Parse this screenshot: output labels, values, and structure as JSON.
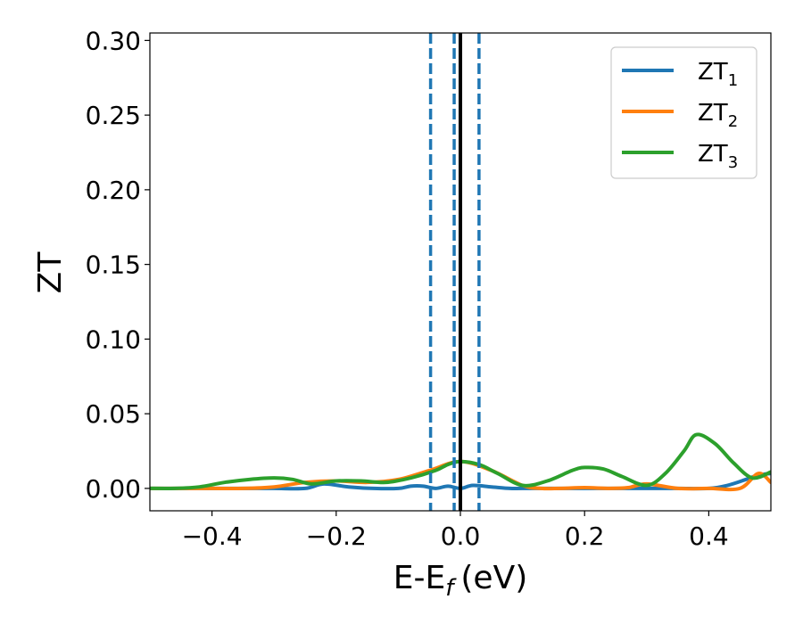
{
  "chart_data": {
    "type": "line",
    "xlabel": "E-E",
    "xlabel_sub": "f",
    "xlabel_unit": "(eV)",
    "ylabel": "ZT",
    "xlim": [
      -0.5,
      0.5
    ],
    "ylim": [
      -0.015,
      0.305
    ],
    "xticks": [
      -0.4,
      -0.2,
      0.0,
      0.2,
      0.4
    ],
    "xtick_labels": [
      "−0.4",
      "−0.2",
      "0.0",
      "0.2",
      "0.4"
    ],
    "yticks": [
      0.0,
      0.05,
      0.1,
      0.15,
      0.2,
      0.25,
      0.3
    ],
    "ytick_labels": [
      "0.00",
      "0.05",
      "0.10",
      "0.15",
      "0.20",
      "0.25",
      "0.30"
    ],
    "grid": false,
    "legend": "top-right",
    "vlines": [
      {
        "x": 0.0,
        "style": "solid",
        "color": "#000000"
      },
      {
        "x": -0.048,
        "style": "dashed",
        "color": "#1f77b4"
      },
      {
        "x": -0.01,
        "style": "dashed",
        "color": "#1f77b4"
      },
      {
        "x": 0.03,
        "style": "dashed",
        "color": "#1f77b4"
      }
    ],
    "series": [
      {
        "name": "ZT",
        "name_sub": "1",
        "color": "#1f77b4",
        "x": [
          -0.5,
          -0.45,
          -0.4,
          -0.35,
          -0.3,
          -0.25,
          -0.22,
          -0.18,
          -0.14,
          -0.1,
          -0.08,
          -0.06,
          -0.04,
          -0.02,
          0.0,
          0.02,
          0.05,
          0.08,
          0.1,
          0.15,
          0.2,
          0.25,
          0.3,
          0.35,
          0.4,
          0.43,
          0.46,
          0.48,
          0.5
        ],
        "y": [
          0.0,
          0.0,
          0.0,
          0.0,
          0.0,
          0.0,
          0.003,
          0.001,
          0.0,
          0.0,
          0.0015,
          0.0015,
          0.0,
          0.0015,
          0.0,
          0.002,
          0.001,
          0.0,
          0.0,
          0.0,
          0.0,
          0.0,
          0.0,
          0.0,
          0.0,
          0.002,
          0.006,
          0.009,
          0.01
        ]
      },
      {
        "name": "ZT",
        "name_sub": "2",
        "color": "#ff7f0e",
        "x": [
          -0.5,
          -0.45,
          -0.4,
          -0.35,
          -0.3,
          -0.25,
          -0.2,
          -0.15,
          -0.1,
          -0.05,
          0.0,
          0.05,
          0.1,
          0.13,
          0.16,
          0.2,
          0.24,
          0.27,
          0.3,
          0.35,
          0.4,
          0.45,
          0.48,
          0.5
        ],
        "y": [
          0.0,
          0.0,
          0.0,
          0.0,
          0.001,
          0.004,
          0.005,
          0.004,
          0.006,
          0.012,
          0.018,
          0.012,
          0.002,
          0.0,
          0.0,
          0.0005,
          0.0,
          0.0005,
          0.003,
          0.0,
          0.0,
          0.0,
          0.01,
          0.004
        ]
      },
      {
        "name": "ZT",
        "name_sub": "3",
        "color": "#2ca02c",
        "x": [
          -0.5,
          -0.46,
          -0.42,
          -0.38,
          -0.34,
          -0.3,
          -0.27,
          -0.24,
          -0.2,
          -0.16,
          -0.12,
          -0.08,
          -0.04,
          -0.02,
          0.0,
          0.03,
          0.06,
          0.1,
          0.14,
          0.18,
          0.2,
          0.23,
          0.26,
          0.3,
          0.33,
          0.36,
          0.38,
          0.41,
          0.44,
          0.47,
          0.5
        ],
        "y": [
          0.0,
          0.0,
          0.001,
          0.004,
          0.006,
          0.007,
          0.006,
          0.003,
          0.005,
          0.005,
          0.004,
          0.007,
          0.012,
          0.016,
          0.018,
          0.016,
          0.01,
          0.002,
          0.005,
          0.012,
          0.014,
          0.013,
          0.008,
          0.002,
          0.01,
          0.025,
          0.036,
          0.03,
          0.017,
          0.007,
          0.011
        ]
      }
    ]
  }
}
